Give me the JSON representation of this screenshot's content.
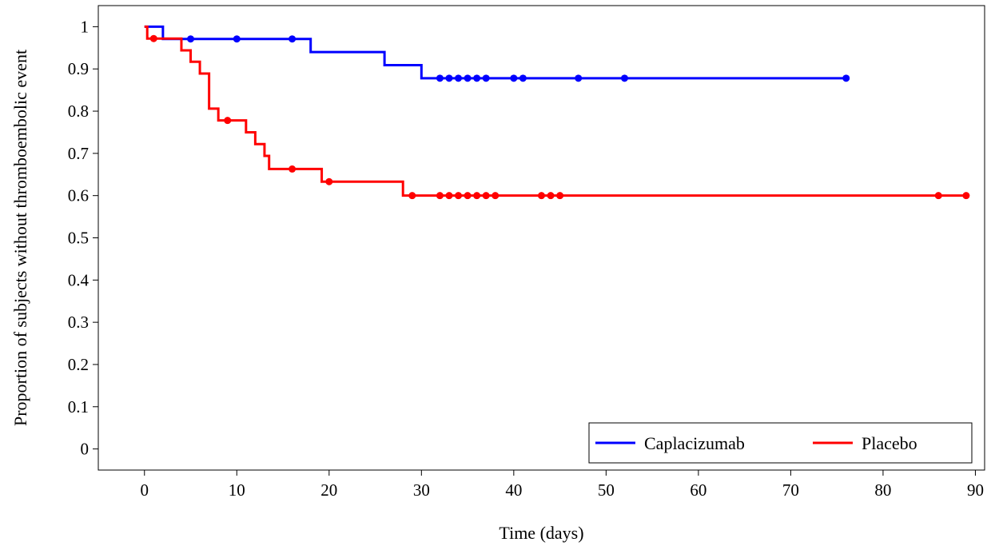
{
  "chart_data": {
    "type": "line",
    "xlabel": "Time (days)",
    "ylabel": "Proportion of subjects without thromboembolic event",
    "xlim": [
      -5,
      91
    ],
    "ylim": [
      -0.05,
      1.05
    ],
    "xticks": [
      0,
      10,
      20,
      30,
      40,
      50,
      60,
      70,
      80,
      90
    ],
    "yticks": [
      0,
      0.1,
      0.2,
      0.3,
      0.4,
      0.5,
      0.6,
      0.7,
      0.8,
      0.9,
      1
    ],
    "grid": false,
    "legend_position": "bottom-right",
    "series": [
      {
        "name": "Caplacizumab",
        "color": "#0000ff",
        "steps": [
          [
            0,
            1
          ],
          [
            2,
            0.971
          ],
          [
            18,
            0.94
          ],
          [
            26,
            0.909
          ],
          [
            30,
            0.878
          ],
          [
            76,
            0.878
          ]
        ],
        "censored": [
          [
            5,
            0.971
          ],
          [
            10,
            0.971
          ],
          [
            16,
            0.971
          ],
          [
            32,
            0.878
          ],
          [
            33,
            0.878
          ],
          [
            34,
            0.878
          ],
          [
            35,
            0.878
          ],
          [
            36,
            0.878
          ],
          [
            37,
            0.878
          ],
          [
            40,
            0.878
          ],
          [
            41,
            0.878
          ],
          [
            47,
            0.878
          ],
          [
            52,
            0.878
          ],
          [
            76,
            0.878
          ]
        ]
      },
      {
        "name": "Placebo",
        "color": "#ff0000",
        "steps": [
          [
            0,
            1
          ],
          [
            0.3,
            0.972
          ],
          [
            4,
            0.944
          ],
          [
            5,
            0.917
          ],
          [
            6,
            0.889
          ],
          [
            7,
            0.806
          ],
          [
            8,
            0.778
          ],
          [
            11,
            0.75
          ],
          [
            12,
            0.722
          ],
          [
            13,
            0.694
          ],
          [
            13.5,
            0.663
          ],
          [
            19.2,
            0.633
          ],
          [
            28,
            0.6
          ],
          [
            89,
            0.6
          ]
        ],
        "censored": [
          [
            1,
            0.972
          ],
          [
            9,
            0.778
          ],
          [
            16,
            0.663
          ],
          [
            20,
            0.633
          ],
          [
            29,
            0.6
          ],
          [
            32,
            0.6
          ],
          [
            33,
            0.6
          ],
          [
            34,
            0.6
          ],
          [
            35,
            0.6
          ],
          [
            36,
            0.6
          ],
          [
            37,
            0.6
          ],
          [
            38,
            0.6
          ],
          [
            43,
            0.6
          ],
          [
            44,
            0.6
          ],
          [
            45,
            0.6
          ],
          [
            86,
            0.6
          ],
          [
            89,
            0.6
          ]
        ]
      }
    ]
  }
}
